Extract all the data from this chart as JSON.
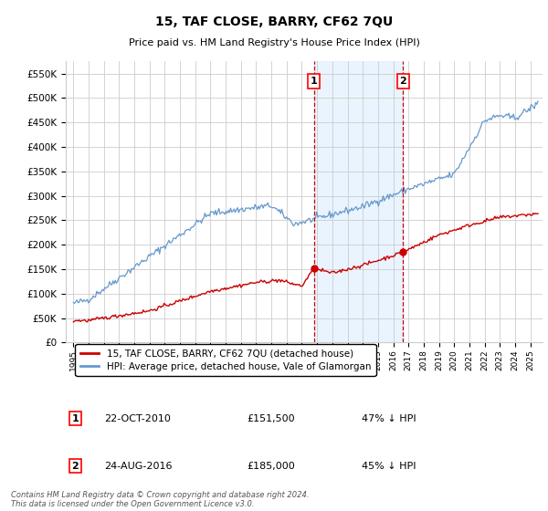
{
  "title": "15, TAF CLOSE, BARRY, CF62 7QU",
  "subtitle": "Price paid vs. HM Land Registry's House Price Index (HPI)",
  "ylim": [
    0,
    575000
  ],
  "yticks": [
    0,
    50000,
    100000,
    150000,
    200000,
    250000,
    300000,
    350000,
    400000,
    450000,
    500000,
    550000
  ],
  "ytick_labels": [
    "£0",
    "£50K",
    "£100K",
    "£150K",
    "£200K",
    "£250K",
    "£300K",
    "£350K",
    "£400K",
    "£450K",
    "£500K",
    "£550K"
  ],
  "legend_line1": "15, TAF CLOSE, BARRY, CF62 7QU (detached house)",
  "legend_line2": "HPI: Average price, detached house, Vale of Glamorgan",
  "line1_color": "#cc0000",
  "line2_color": "#6699cc",
  "sale1_date": "22-OCT-2010",
  "sale1_price": "£151,500",
  "sale1_pct": "47% ↓ HPI",
  "sale2_date": "24-AUG-2016",
  "sale2_price": "£185,000",
  "sale2_pct": "45% ↓ HPI",
  "marker1_x": 2010.8,
  "marker1_y": 151500,
  "marker2_x": 2016.65,
  "marker2_y": 185000,
  "vline1_x": 2010.8,
  "vline2_x": 2016.65,
  "footer": "Contains HM Land Registry data © Crown copyright and database right 2024.\nThis data is licensed under the Open Government Licence v3.0.",
  "bg_color": "#ffffff",
  "grid_color": "#cccccc",
  "shade_color": "#ddeeff",
  "xlim": [
    1994.5,
    2025.8
  ],
  "tick_years": [
    1995,
    1996,
    1997,
    1998,
    1999,
    2000,
    2001,
    2002,
    2003,
    2004,
    2005,
    2006,
    2007,
    2008,
    2009,
    2010,
    2011,
    2012,
    2013,
    2014,
    2015,
    2016,
    2017,
    2018,
    2019,
    2020,
    2021,
    2022,
    2023,
    2024,
    2025
  ]
}
